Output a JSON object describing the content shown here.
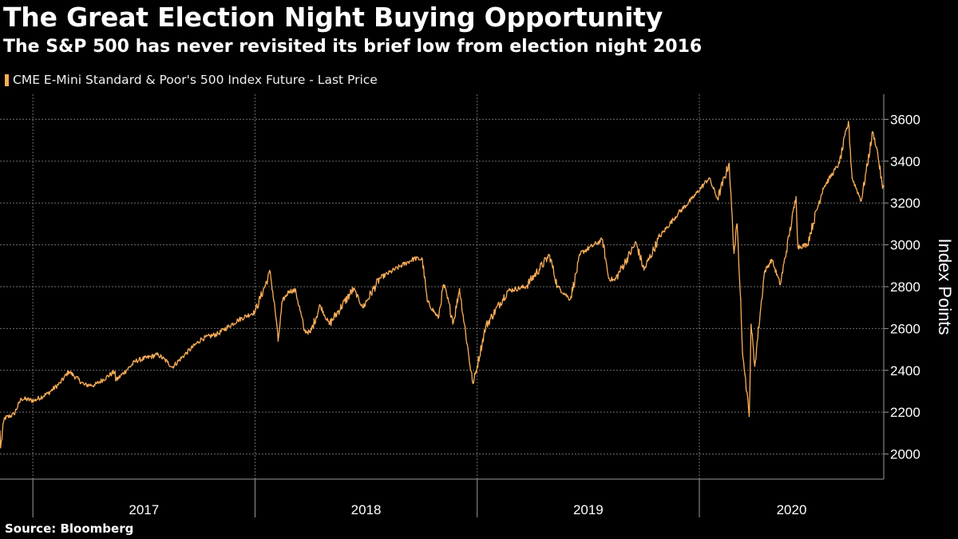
{
  "header": {
    "title": "The Great Election Night Buying Opportunity",
    "subtitle": "The S&P 500 has never revisited its brief low from election night 2016"
  },
  "legend": {
    "label": "CME E-Mini Standard & Poor's 500 Index Future - Last Price"
  },
  "footer": {
    "source": "Source: Bloomberg"
  },
  "colors": {
    "background": "#000000",
    "series": "#fbae5a",
    "grid": "#6e6e6e",
    "axis": "#9a9a9a"
  },
  "chart_data": {
    "type": "line",
    "title": "The Great Election Night Buying Opportunity",
    "subtitle": "The S&P 500 has never revisited its brief low from election night 2016",
    "ylabel": "Index Points",
    "xlabel": "",
    "ylim": [
      1880,
      3720
    ],
    "xlim": [
      "2016-11-08",
      "2020-10-30"
    ],
    "y_ticks": [
      2000,
      2200,
      2400,
      2600,
      2800,
      3000,
      3200,
      3400,
      3600
    ],
    "x_tick_labels": [
      "2017",
      "2018",
      "2019",
      "2020"
    ],
    "x_year_boundaries": [
      "2017-01-01",
      "2018-01-01",
      "2019-01-01",
      "2020-01-01"
    ],
    "grid": true,
    "legend_position": "top-left",
    "y_axis_position": "right",
    "series": [
      {
        "name": "CME E-Mini Standard & Poor's 500 Index Future - Last Price",
        "x": [
          "2016-11-08",
          "2016-11-09",
          "2016-11-15",
          "2016-12-01",
          "2016-12-13",
          "2017-01-03",
          "2017-01-26",
          "2017-02-15",
          "2017-03-01",
          "2017-03-27",
          "2017-04-13",
          "2017-05-16",
          "2017-05-17",
          "2017-06-19",
          "2017-07-26",
          "2017-08-10",
          "2017-08-18",
          "2017-09-11",
          "2017-10-05",
          "2017-11-01",
          "2017-12-04",
          "2018-01-01",
          "2018-01-26",
          "2018-02-05",
          "2018-02-08",
          "2018-02-15",
          "2018-02-26",
          "2018-03-09",
          "2018-03-23",
          "2018-04-02",
          "2018-04-18",
          "2018-05-03",
          "2018-06-12",
          "2018-06-27",
          "2018-07-25",
          "2018-08-29",
          "2018-09-20",
          "2018-10-03",
          "2018-10-11",
          "2018-10-29",
          "2018-11-07",
          "2018-11-23",
          "2018-12-03",
          "2018-12-24",
          "2018-12-26",
          "2019-01-15",
          "2019-02-20",
          "2019-03-22",
          "2019-04-30",
          "2019-05-13",
          "2019-06-03",
          "2019-06-20",
          "2019-07-26",
          "2019-08-05",
          "2019-08-15",
          "2019-09-19",
          "2019-10-02",
          "2019-10-28",
          "2019-11-27",
          "2019-12-20",
          "2020-01-17",
          "2020-01-31",
          "2020-02-19",
          "2020-02-27",
          "2020-03-03",
          "2020-03-09",
          "2020-03-12",
          "2020-03-16",
          "2020-03-23",
          "2020-03-26",
          "2020-04-01",
          "2020-04-17",
          "2020-04-29",
          "2020-05-13",
          "2020-06-08",
          "2020-06-11",
          "2020-06-26",
          "2020-07-22",
          "2020-08-18",
          "2020-09-02",
          "2020-09-08",
          "2020-09-23",
          "2020-10-12",
          "2020-10-20",
          "2020-10-28",
          "2020-10-30"
        ],
        "values": [
          2110,
          2030,
          2170,
          2190,
          2265,
          2255,
          2290,
          2340,
          2395,
          2330,
          2330,
          2395,
          2350,
          2445,
          2475,
          2440,
          2415,
          2485,
          2550,
          2575,
          2640,
          2680,
          2870,
          2640,
          2540,
          2730,
          2780,
          2780,
          2590,
          2580,
          2710,
          2620,
          2790,
          2700,
          2840,
          2900,
          2935,
          2930,
          2730,
          2650,
          2810,
          2630,
          2790,
          2350,
          2340,
          2610,
          2780,
          2800,
          2950,
          2800,
          2740,
          2960,
          3025,
          2840,
          2830,
          3010,
          2880,
          3040,
          3150,
          3220,
          3320,
          3220,
          3390,
          2960,
          3100,
          2740,
          2480,
          2380,
          2180,
          2620,
          2420,
          2870,
          2930,
          2810,
          3230,
          2990,
          3000,
          3270,
          3390,
          3590,
          3320,
          3210,
          3540,
          3440,
          3270,
          3280
        ]
      }
    ]
  }
}
